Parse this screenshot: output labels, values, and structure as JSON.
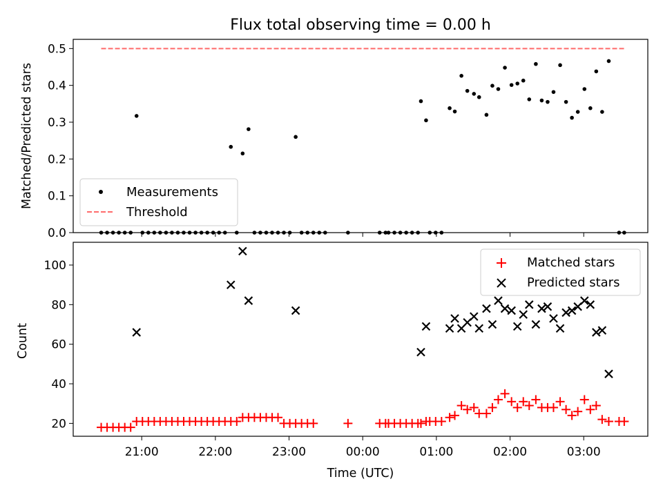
{
  "chart_data": [
    {
      "type": "scatter",
      "title": "Flux total observing time = 0.00 h",
      "xlabel": "",
      "ylabel": "Matched/Predicted stars",
      "ylim": [
        0,
        0.525
      ],
      "xlim": [
        -3.93,
        3.87
      ],
      "yticks": [
        0.0,
        0.1,
        0.2,
        0.3,
        0.4,
        0.5
      ],
      "ytick_labels": [
        "0.0",
        "0.1",
        "0.2",
        "0.3",
        "0.4",
        "0.5"
      ],
      "legend": {
        "position": "lower-left",
        "entries": [
          "Measurements",
          "Threshold"
        ]
      },
      "threshold": {
        "name": "Threshold",
        "value": 0.5,
        "x_range": [
          -3.55,
          3.55
        ],
        "color": "#ff6a6a"
      },
      "series": [
        {
          "name": "Measurements",
          "marker": "dot",
          "color": "#000000",
          "x": [
            -3.55,
            -3.47,
            -3.39,
            -3.31,
            -3.23,
            -3.15,
            -3.07,
            -2.99,
            -2.91,
            -2.83,
            -2.75,
            -2.67,
            -2.59,
            -2.51,
            -2.43,
            -2.35,
            -2.27,
            -2.19,
            -2.11,
            -2.03,
            -1.95,
            -1.87,
            -1.79,
            -1.71,
            -1.63,
            -1.55,
            -1.47,
            -1.39,
            -1.31,
            -1.23,
            -1.15,
            -1.07,
            -0.99,
            -0.91,
            -0.83,
            -0.75,
            -0.67,
            -0.59,
            -0.51,
            -0.2,
            0.23,
            0.31,
            0.35,
            0.43,
            0.51,
            0.59,
            0.67,
            0.75,
            0.79,
            0.86,
            0.91,
            0.99,
            1.07,
            1.18,
            1.25,
            1.34,
            1.42,
            1.51,
            1.58,
            1.68,
            1.76,
            1.84,
            1.93,
            2.02,
            2.1,
            2.18,
            2.26,
            2.35,
            2.43,
            2.51,
            2.59,
            2.68,
            2.76,
            2.84,
            2.92,
            3.01,
            3.09,
            3.17,
            3.25,
            3.34,
            3.48,
            3.55
          ],
          "y": [
            0,
            0,
            0,
            0,
            0,
            0,
            0.317,
            0,
            0,
            0,
            0,
            0,
            0,
            0,
            0,
            0,
            0,
            0,
            0,
            0,
            0,
            0,
            0.233,
            0,
            0.215,
            0.281,
            0,
            0,
            0,
            0,
            0,
            0,
            0,
            0.26,
            0,
            0,
            0,
            0,
            0,
            0,
            0,
            0,
            0,
            0,
            0,
            0,
            0,
            0,
            0.357,
            0.305,
            0,
            0,
            0,
            0.338,
            0.329,
            0.426,
            0.385,
            0.377,
            0.368,
            0.32,
            0.399,
            0.39,
            0.448,
            0.401,
            0.405,
            0.413,
            0.362,
            0.458,
            0.359,
            0.355,
            0.382,
            0.455,
            0.355,
            0.312,
            0.328,
            0.39,
            0.338,
            0.438,
            0.328,
            0.466,
            0,
            0
          ]
        }
      ]
    },
    {
      "type": "scatter",
      "title": "",
      "xlabel": "Time (UTC)",
      "ylabel": "Count",
      "ylim": [
        13.5,
        111.5
      ],
      "xlim": [
        -3.93,
        3.87
      ],
      "yticks": [
        20,
        40,
        60,
        80,
        100
      ],
      "ytick_labels": [
        "20",
        "40",
        "60",
        "80",
        "100"
      ],
      "xticks": [
        -3,
        -2,
        -1,
        0,
        1,
        2,
        3
      ],
      "xtick_labels": [
        "21:00",
        "22:00",
        "23:00",
        "00:00",
        "01:00",
        "02:00",
        "03:00"
      ],
      "legend": {
        "position": "top-right",
        "entries": [
          "Matched stars",
          "Predicted stars"
        ]
      },
      "series": [
        {
          "name": "Matched stars",
          "marker": "plus",
          "color": "#ff0000",
          "x": [
            -3.55,
            -3.47,
            -3.39,
            -3.31,
            -3.23,
            -3.15,
            -3.07,
            -2.99,
            -2.91,
            -2.83,
            -2.75,
            -2.67,
            -2.59,
            -2.51,
            -2.43,
            -2.35,
            -2.27,
            -2.19,
            -2.11,
            -2.03,
            -1.95,
            -1.87,
            -1.79,
            -1.71,
            -1.63,
            -1.55,
            -1.47,
            -1.39,
            -1.31,
            -1.23,
            -1.15,
            -1.07,
            -0.99,
            -0.91,
            -0.83,
            -0.75,
            -0.67,
            -0.2,
            0.23,
            0.31,
            0.35,
            0.43,
            0.51,
            0.59,
            0.67,
            0.75,
            0.79,
            0.86,
            0.91,
            0.99,
            1.07,
            1.18,
            1.25,
            1.34,
            1.42,
            1.51,
            1.58,
            1.68,
            1.76,
            1.84,
            1.93,
            2.02,
            2.1,
            2.18,
            2.26,
            2.35,
            2.43,
            2.51,
            2.59,
            2.68,
            2.76,
            2.84,
            2.92,
            3.01,
            3.09,
            3.17,
            3.25,
            3.34,
            3.48,
            3.55
          ],
          "y": [
            18,
            18,
            18,
            18,
            18,
            18,
            21,
            21,
            21,
            21,
            21,
            21,
            21,
            21,
            21,
            21,
            21,
            21,
            21,
            21,
            21,
            21,
            21,
            21,
            23,
            23,
            23,
            23,
            23,
            23,
            23,
            20,
            20,
            20,
            20,
            20,
            20,
            20,
            20,
            20,
            20,
            20,
            20,
            20,
            20,
            20,
            20,
            21,
            21,
            21,
            21,
            23,
            24,
            29,
            27,
            28,
            25,
            25,
            28,
            32,
            35,
            31,
            28,
            31,
            29,
            32,
            28,
            28,
            28,
            31,
            27,
            24,
            26,
            32,
            27,
            29,
            22,
            21,
            21,
            21
          ]
        },
        {
          "name": "Predicted stars",
          "marker": "x",
          "color": "#000000",
          "x": [
            -3.07,
            -1.79,
            -1.63,
            -1.55,
            -0.91,
            0.79,
            0.86,
            1.18,
            1.25,
            1.34,
            1.42,
            1.51,
            1.58,
            1.68,
            1.76,
            1.84,
            1.93,
            2.02,
            2.1,
            2.18,
            2.26,
            2.35,
            2.43,
            2.51,
            2.59,
            2.68,
            2.76,
            2.84,
            2.92,
            3.01,
            3.09,
            3.17,
            3.25,
            3.34
          ],
          "y": [
            66,
            90,
            107,
            82,
            77,
            56,
            69,
            68,
            73,
            68,
            71,
            74,
            68,
            78,
            70,
            82,
            78,
            77,
            69,
            75,
            80,
            70,
            78,
            79,
            73,
            68,
            76,
            77,
            79,
            82,
            80,
            66,
            67,
            45
          ]
        }
      ]
    }
  ]
}
